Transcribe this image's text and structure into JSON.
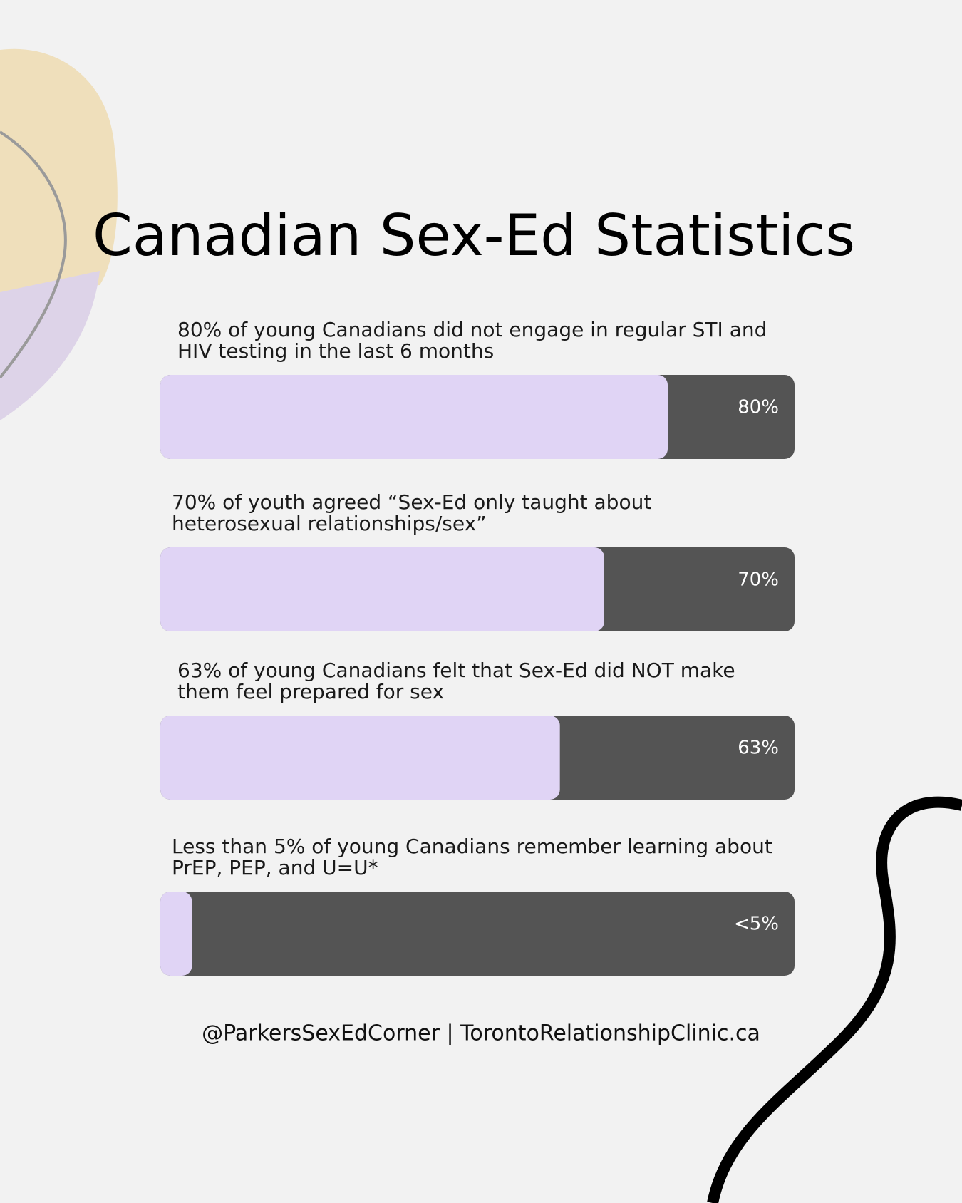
{
  "chart_data": {
    "type": "progress",
    "title": "Canadian Sex-Ed Statistics",
    "categories": [
      "80% of young Canadians did not engage in regular STI and HIV testing in the last 6 months",
      "70% of youth agreed “Sex-Ed only taught about heterosexual relationships/sex”",
      "63% of young Canadians felt that Sex-Ed did NOT make them feel prepared for sex",
      "Less than 5% of young Canadians remember learning about PrEP, PEP, and U=U*"
    ],
    "values": [
      80,
      70,
      63,
      5
    ],
    "value_labels": [
      "80%",
      "70%",
      "63%",
      "<5%"
    ],
    "xlim": [
      0,
      100
    ],
    "color": "#e0d4f5",
    "track_color": "#545454",
    "source": "@ParkersSexEdCorner | TorontoRelationshipClinic.ca"
  }
}
